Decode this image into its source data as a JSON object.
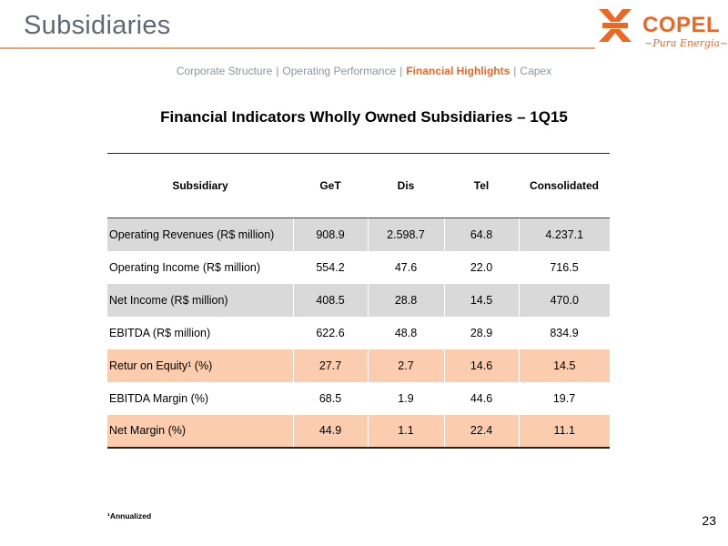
{
  "header": {
    "title": "Subsidiaries",
    "accent_color": "#e7a27b"
  },
  "logo": {
    "name": "COPEL",
    "tagline": "Pura Energia",
    "brand_color": "#ec6624"
  },
  "nav": {
    "items": [
      {
        "label": "Corporate Structure",
        "active": false
      },
      {
        "label": "Operating Performance",
        "active": false
      },
      {
        "label": "Financial Highlights",
        "active": true
      },
      {
        "label": "Capex",
        "active": false
      }
    ],
    "separator": "|"
  },
  "table": {
    "title": "Financial Indicators Wholly Owned Subsidiaries – 1Q15",
    "headers": [
      "Subsidiary",
      "GeT",
      "Dis",
      "Tel",
      "Consolidated"
    ],
    "rows": [
      {
        "label": "Operating Revenues (R$ million)",
        "values": [
          "908.9",
          "2.598.7",
          "64.8",
          "4.237.1"
        ],
        "shade": "grey"
      },
      {
        "label": "Operating Income (R$ million)",
        "values": [
          "554.2",
          "47.6",
          "22.0",
          "716.5"
        ],
        "shade": "none"
      },
      {
        "label": "Net Income (R$ million)",
        "values": [
          "408.5",
          "28.8",
          "14.5",
          "470.0"
        ],
        "shade": "grey"
      },
      {
        "label": "EBITDA (R$ million)",
        "values": [
          "622.6",
          "48.8",
          "28.9",
          "834.9"
        ],
        "shade": "none"
      },
      {
        "label": "Retur on Equity¹ (%)",
        "values": [
          "27.7",
          "2.7",
          "14.6",
          "14.5"
        ],
        "shade": "peach"
      },
      {
        "label": "EBITDA Margin (%)",
        "values": [
          "68.5",
          "1.9",
          "44.6",
          "19.7"
        ],
        "shade": "none"
      },
      {
        "label": "Net Margin (%)",
        "values": [
          "44.9",
          "1.1",
          "22.4",
          "11.1"
        ],
        "shade": "peach"
      }
    ],
    "colors": {
      "grey": "#d9d9d9",
      "peach": "#fbcdae"
    }
  },
  "footnote": "¹Annualized",
  "page_number": "23"
}
